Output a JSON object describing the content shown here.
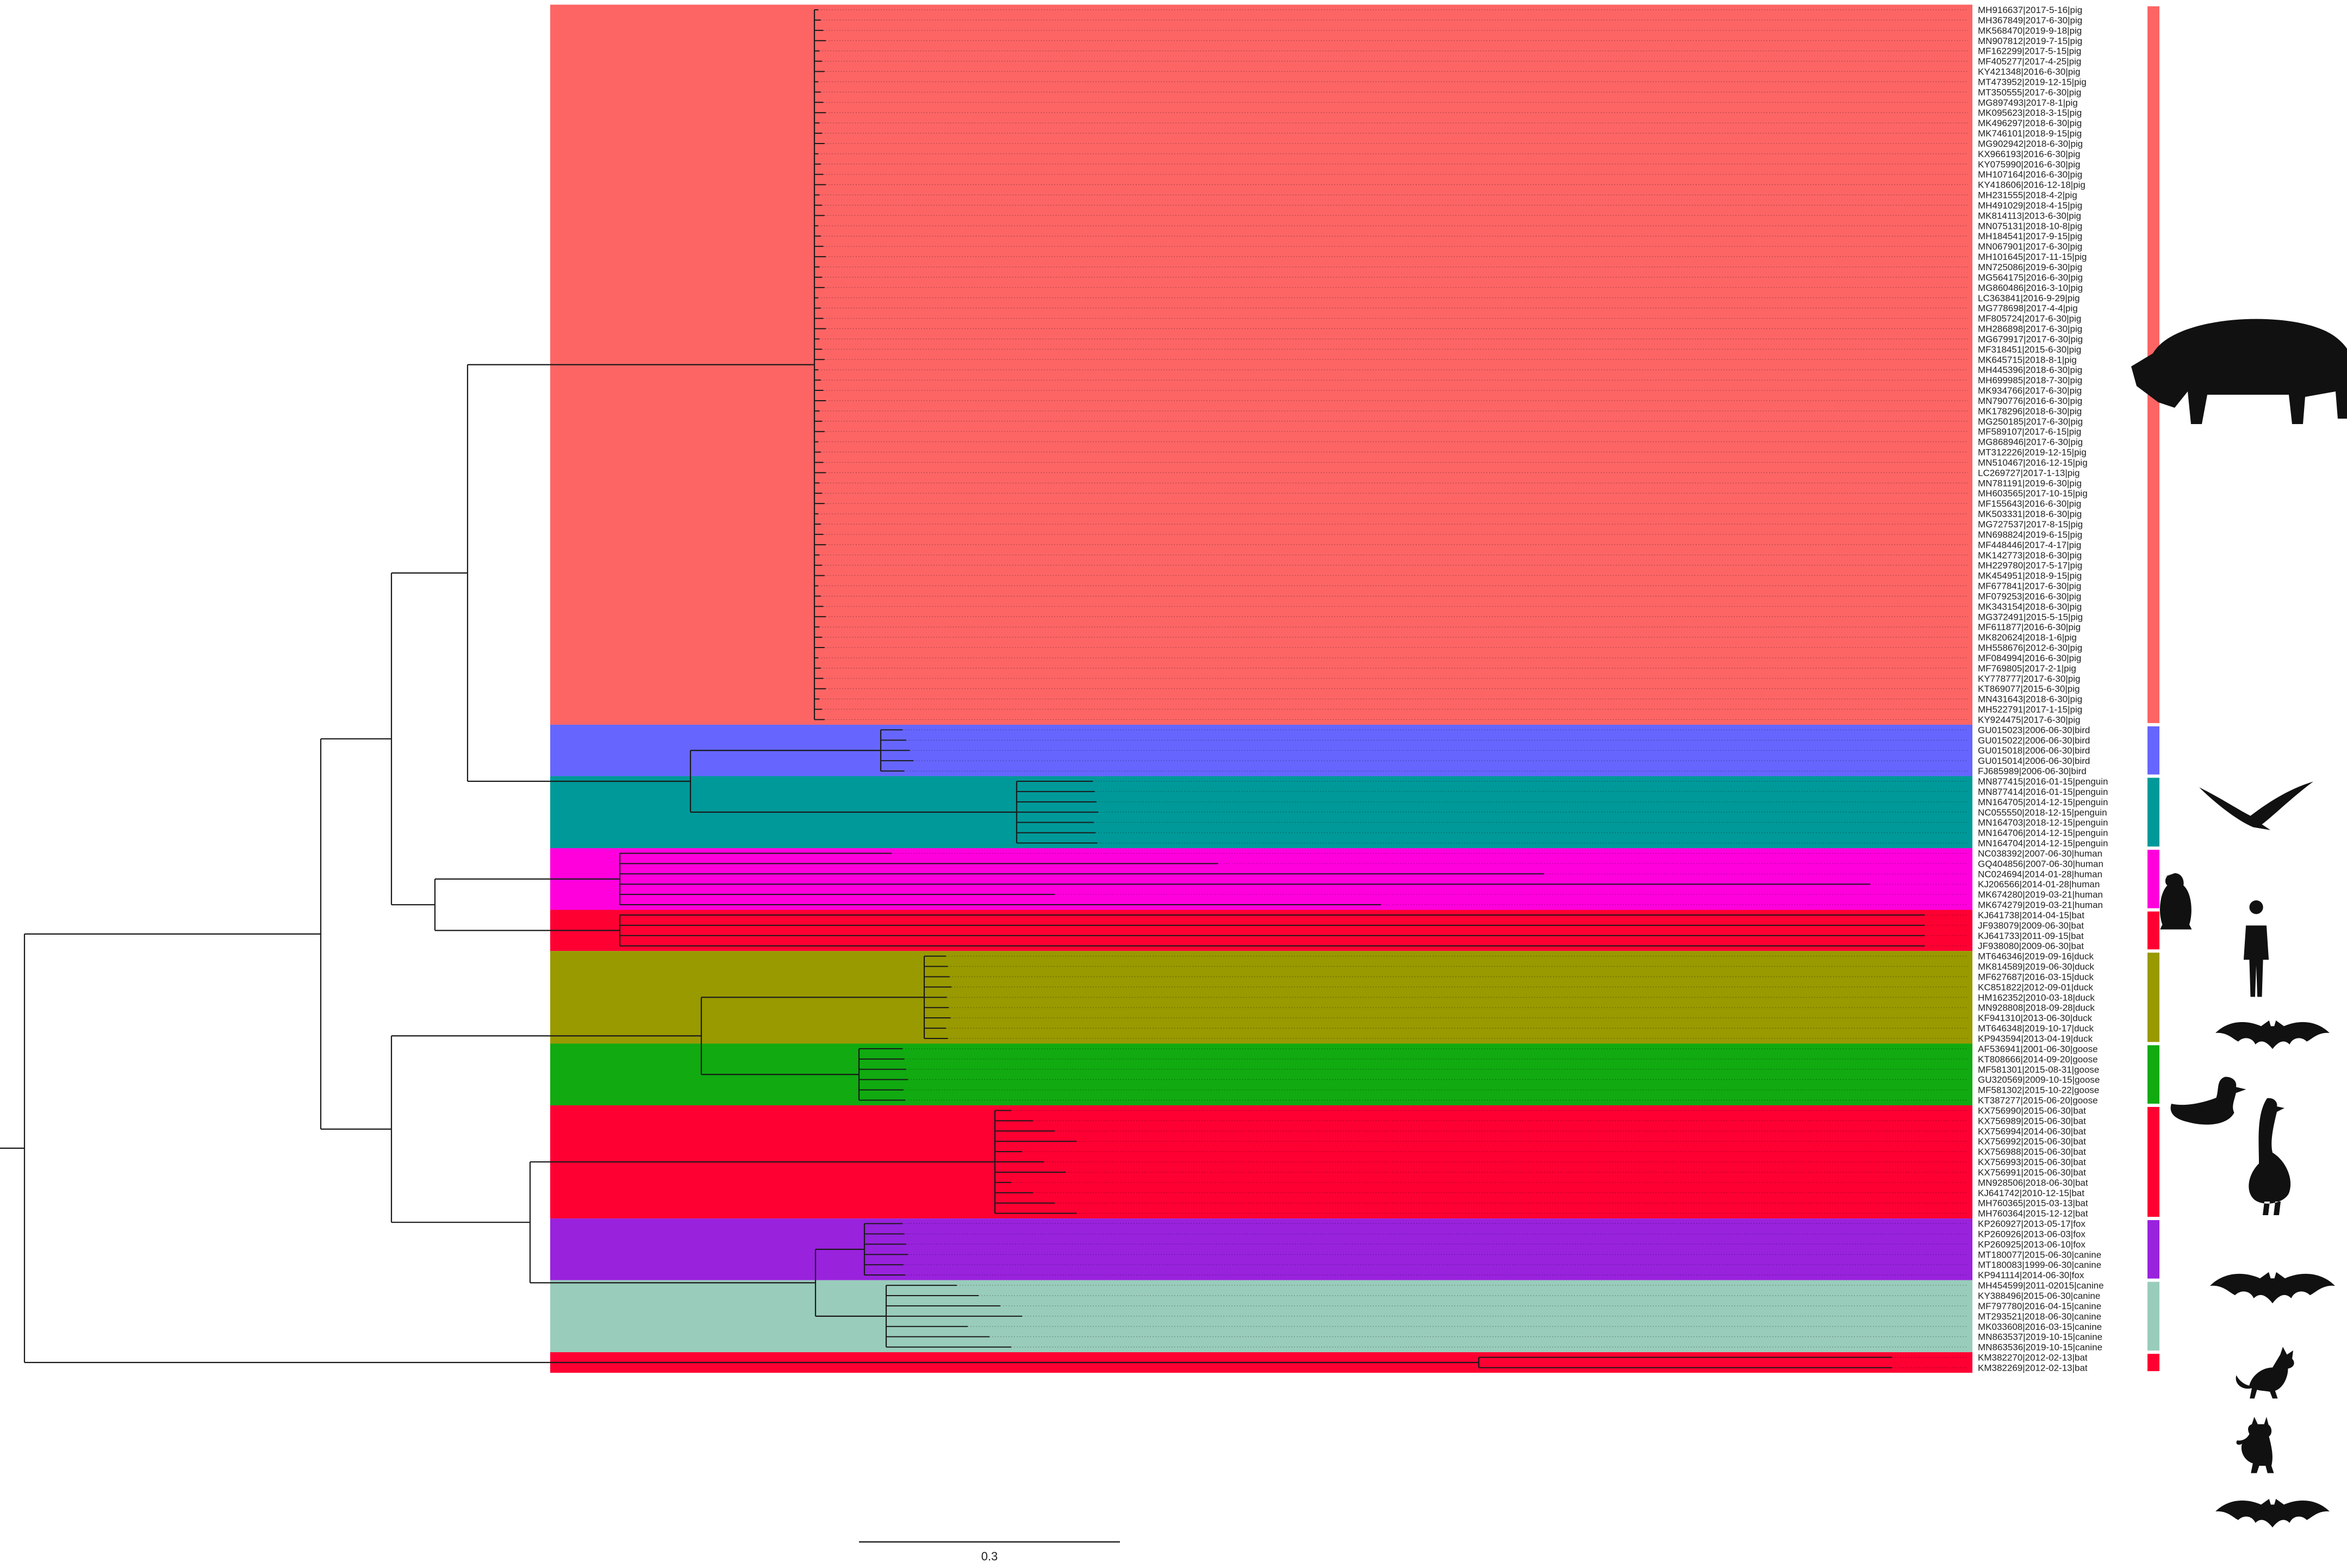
{
  "scale_bar": {
    "label": "0.3",
    "value": 0.3
  },
  "colors": {
    "pig": "#fd6565",
    "bird": "#6666ff",
    "penguin": "#009999",
    "human": "#ff00dd",
    "bat": "#ff0033",
    "duck": "#999900",
    "goose": "#11aa11",
    "fox": "#9922dd",
    "canine": "#99ccbb"
  },
  "clades": [
    {
      "name": "pig",
      "color_key": "pig",
      "icon": "pig-silhouette-icon",
      "leaves": [
        "MH916637|2017-5-16|pig",
        "MH367849|2017-6-30|pig",
        "MK568470|2019-9-18|pig",
        "MN907812|2019-7-15|pig",
        "MF162299|2017-5-15|pig",
        "MF405277|2017-4-25|pig",
        "KY421348|2016-6-30|pig",
        "MT473952|2019-12-15|pig",
        "MT350555|2017-6-30|pig",
        "MG897493|2017-8-1|pig",
        "MK095623|2018-3-15|pig",
        "MK496297|2018-6-30|pig",
        "MK746101|2018-9-15|pig",
        "MG902942|2018-6-30|pig",
        "KX966193|2016-6-30|pig",
        "KY075990|2016-6-30|pig",
        "MH107164|2016-6-30|pig",
        "KY418606|2016-12-18|pig",
        "MH231555|2018-4-2|pig",
        "MH491029|2018-4-15|pig",
        "MK814113|2013-6-30|pig",
        "MN075131|2018-10-8|pig",
        "MH184541|2017-9-15|pig",
        "MN067901|2017-6-30|pig",
        "MH101645|2017-11-15|pig",
        "MN725086|2019-6-30|pig",
        "MG564175|2016-6-30|pig",
        "MG860486|2016-3-10|pig",
        "LC363841|2016-9-29|pig",
        "MG778698|2017-4-4|pig",
        "MF805724|2017-6-30|pig",
        "MH286898|2017-6-30|pig",
        "MG679917|2017-6-30|pig",
        "MF318451|2015-6-30|pig",
        "MK645715|2018-8-1|pig",
        "MH445396|2018-6-30|pig",
        "MH699985|2018-7-30|pig",
        "MK934766|2017-6-30|pig",
        "MN790776|2016-6-30|pig",
        "MK178296|2018-6-30|pig",
        "MG250185|2017-6-30|pig",
        "MF589107|2017-6-15|pig",
        "MG868946|2017-6-30|pig",
        "MT312226|2019-12-15|pig",
        "MN510467|2016-12-15|pig",
        "LC269727|2017-1-13|pig",
        "MN781191|2019-6-30|pig",
        "MH603565|2017-10-15|pig",
        "MF155643|2016-6-30|pig",
        "MK503331|2018-6-30|pig",
        "MG727537|2017-8-15|pig",
        "MN698824|2019-6-15|pig",
        "MF448446|2017-4-17|pig",
        "MK142773|2018-6-30|pig",
        "MH229780|2017-5-17|pig",
        "MK454951|2018-9-15|pig",
        "MF677841|2017-6-30|pig",
        "MF079253|2016-6-30|pig",
        "MK343154|2018-6-30|pig",
        "MG372491|2015-5-15|pig",
        "MF611877|2016-6-30|pig",
        "MK820624|2018-1-6|pig",
        "MH558676|2012-6-30|pig",
        "MF084994|2016-6-30|pig",
        "MF769805|2017-2-1|pig",
        "KY778777|2017-6-30|pig",
        "KT869077|2015-6-30|pig",
        "MN431643|2018-6-30|pig",
        "MH522791|2017-1-15|pig",
        "KY924475|2017-6-30|pig"
      ]
    },
    {
      "name": "bird",
      "color_key": "bird",
      "icon": "bird-silhouette-icon",
      "leaves": [
        "GU015023|2006-06-30|bird",
        "GU015022|2006-06-30|bird",
        "GU015018|2006-06-30|bird",
        "GU015014|2006-06-30|bird",
        "FJ685989|2006-06-30|bird"
      ]
    },
    {
      "name": "penguin",
      "color_key": "penguin",
      "icon": "penguin-silhouette-icon",
      "leaves": [
        "MN877415|2016-01-15|penguin",
        "MN877414|2016-01-15|penguin",
        "MN164705|2014-12-15|penguin",
        "NC055550|2018-12-15|penguin",
        "MN164703|2018-12-15|penguin",
        "MN164706|2014-12-15|penguin",
        "MN164704|2014-12-15|penguin"
      ]
    },
    {
      "name": "human",
      "color_key": "human",
      "icon": "human-silhouette-icon",
      "leaves": [
        "NC038392|2007-06-30|human",
        "GQ404856|2007-06-30|human",
        "NC024694|2014-01-28|human",
        "KJ206566|2014-01-28|human",
        "MK674280|2019-03-21|human",
        "MK674279|2019-03-21|human"
      ]
    },
    {
      "name": "bat-1",
      "color_key": "bat",
      "icon": "bat-silhouette-icon",
      "leaves": [
        "KJ641738|2014-04-15|bat",
        "JF938079|2009-06-30|bat",
        "KJ641733|2011-09-15|bat",
        "JF938080|2009-06-30|bat"
      ]
    },
    {
      "name": "duck",
      "color_key": "duck",
      "icon": "duck-silhouette-icon",
      "leaves": [
        "MT646346|2019-09-16|duck",
        "MK814589|2019-06-30|duck",
        "MF627687|2016-03-15|duck",
        "KC851822|2012-09-01|duck",
        "HM162352|2010-03-18|duck",
        "MN928808|2018-09-28|duck",
        "KF941310|2013-06-30|duck",
        "MT646348|2019-10-17|duck",
        "KP943594|2013-04-19|duck"
      ]
    },
    {
      "name": "goose",
      "color_key": "goose",
      "icon": "goose-silhouette-icon",
      "leaves": [
        "AF536941|2001-06-30|goose",
        "KT808666|2014-09-20|goose",
        "MF581301|2015-08-31|goose",
        "GU320569|2009-10-15|goose",
        "MF581302|2015-10-22|goose",
        "KT387277|2015-06-20|goose"
      ]
    },
    {
      "name": "bat-2",
      "color_key": "bat",
      "icon": "bat-silhouette-icon",
      "leaves": [
        "KX756990|2015-06-30|bat",
        "KX756989|2015-06-30|bat",
        "KX756994|2014-06-30|bat",
        "KX756992|2015-06-30|bat",
        "KX756988|2015-06-30|bat",
        "KX756993|2015-06-30|bat",
        "KX756991|2015-06-30|bat",
        "MN928506|2018-06-30|bat",
        "KJ641742|2010-12-15|bat",
        "MH760365|2015-03-13|bat",
        "MH760364|2015-12-12|bat"
      ]
    },
    {
      "name": "fox",
      "color_key": "fox",
      "icon": "fox-silhouette-icon",
      "leaves": [
        "KP260927|2013-05-17|fox",
        "KP260926|2013-06-03|fox",
        "KP260925|2013-06-10|fox",
        "MT180077|2015-06-30|canine",
        "MT180083|1999-06-30|canine",
        "KP941114|2014-06-30|fox"
      ]
    },
    {
      "name": "canine",
      "color_key": "canine",
      "icon": "dog-silhouette-icon",
      "leaves": [
        "MH454599|2011-02015|canine",
        "KY388496|2015-06-30|canine",
        "MF797780|2016-04-15|canine",
        "MT293521|2018-06-30|canine",
        "MK033608|2016-03-15|canine",
        "MN863537|2019-10-15|canine",
        "MN863536|2019-10-15|canine"
      ]
    },
    {
      "name": "bat-3",
      "color_key": "bat",
      "icon": "bat-silhouette-icon",
      "leaves": [
        "KM382270|2012-02-13|bat",
        "KM382269|2012-02-13|bat"
      ]
    }
  ]
}
